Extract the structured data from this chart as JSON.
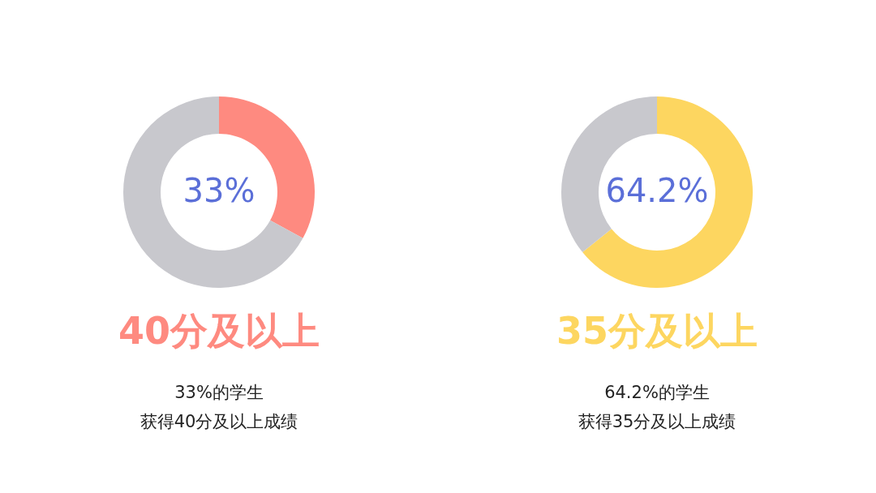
{
  "chart_data": [
    {
      "type": "donut",
      "title": "40分及以上",
      "categories": [
        null,
        null
      ],
      "values": [
        33,
        67
      ],
      "colors": [
        "#fe8a80",
        "#c8c8cd"
      ],
      "value_labels": [
        "33%",
        null
      ],
      "annotations": [
        "33%的学生",
        "获得40分及以上成绩"
      ]
    },
    {
      "type": "donut",
      "title": "35分及以上",
      "categories": [
        null,
        null
      ],
      "values": [
        64.2,
        35.8
      ],
      "colors": [
        "#fdd660",
        "#c8c8cd"
      ],
      "value_labels": [
        "64.2%",
        null
      ],
      "annotations": [
        "64.2%的学生",
        "获得35分及以上成绩"
      ]
    }
  ]
}
